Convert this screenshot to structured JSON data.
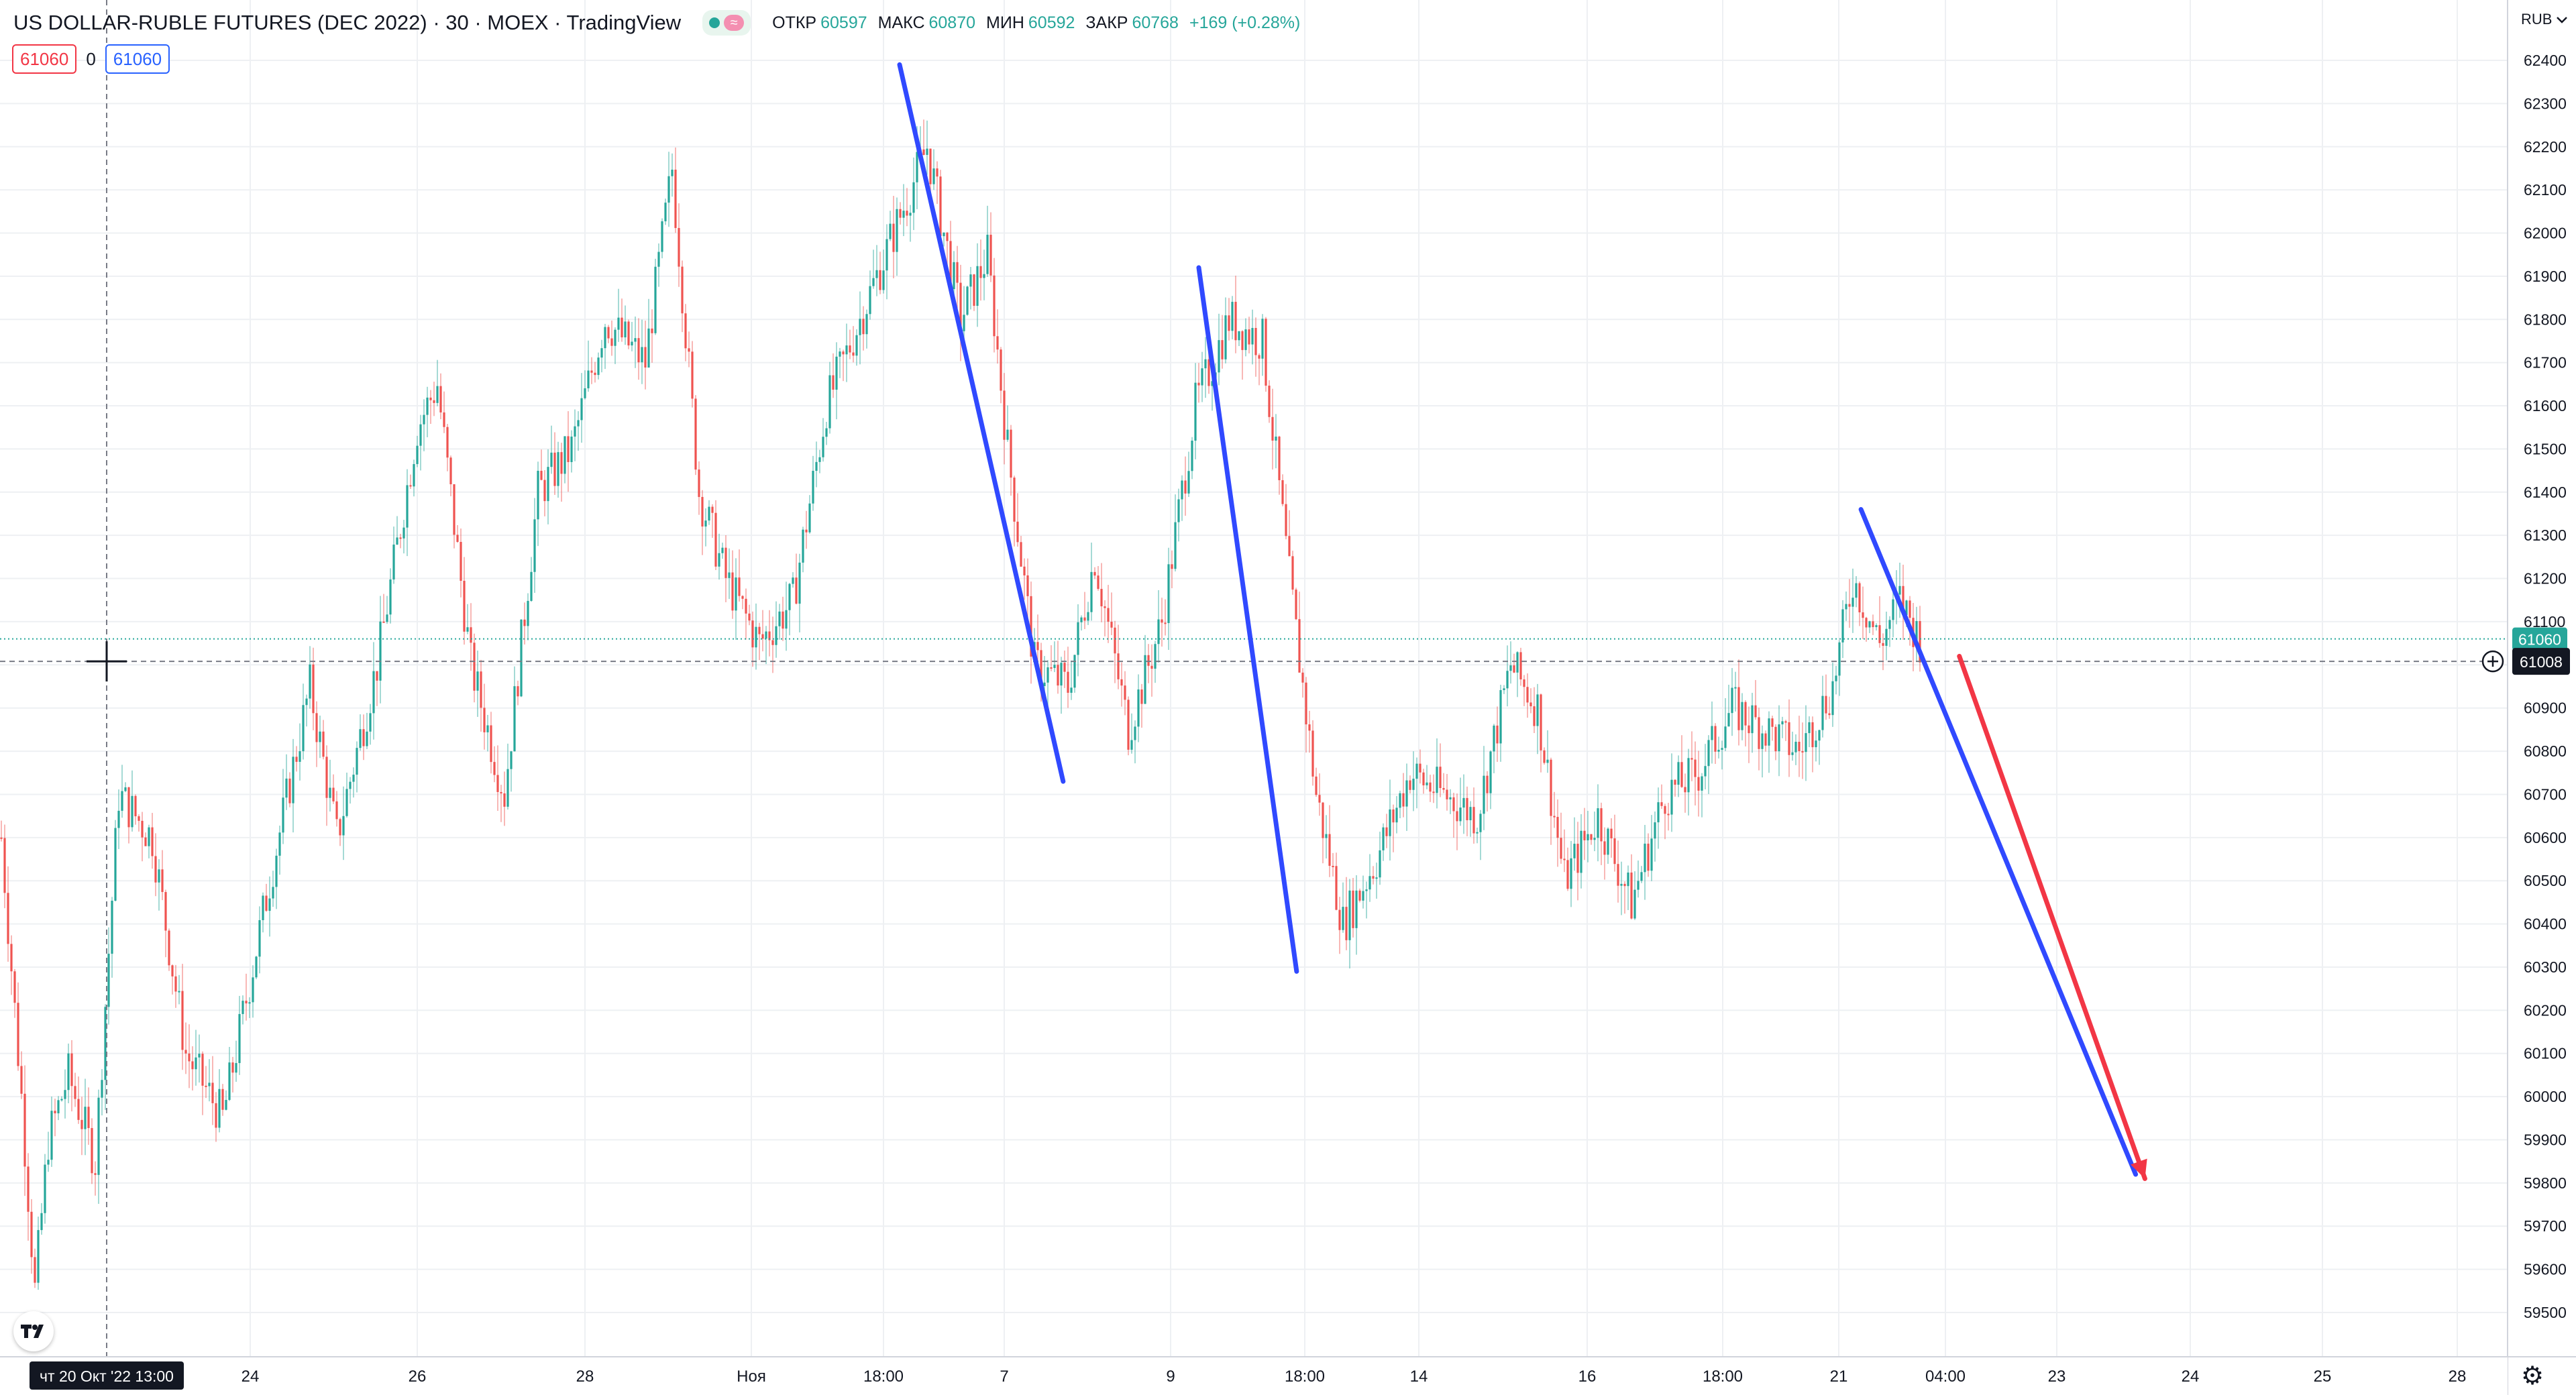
{
  "header": {
    "title": "US DOLLAR-RUBLE FUTURES (DEC 2022) · 30 · MOEX · TradingView",
    "ohlc": [
      {
        "label": "ОТКР",
        "value": "60597"
      },
      {
        "label": "МАКС",
        "value": "60870"
      },
      {
        "label": "МИН",
        "value": "60592"
      },
      {
        "label": "ЗАКР",
        "value": "60768"
      }
    ],
    "change": "+169 (+0.28%)",
    "wave_symbol": "≈"
  },
  "position": {
    "sell": "61060",
    "spread": "0",
    "buy": "61060"
  },
  "price_scale": {
    "currency": "RUB"
  },
  "crosshair": {
    "price_label": "61008",
    "time_label": "чт 20 Окт '22   13:00"
  },
  "last_price_label": "61060",
  "colors": {
    "up": "#26a69a",
    "down": "#ef5350",
    "trend": "#3049ff",
    "projection": "#f23645",
    "grid": "#eef0f3",
    "last_price_line": "#26a69a"
  },
  "icons": {
    "logo": "tradingview-logo-icon",
    "settings": "gear-icon",
    "crosshair": "crosshair-icon",
    "add": "plus-circle-icon"
  },
  "chart_data": {
    "type": "candlestick",
    "title": "US DOLLAR-RUBLE FUTURES (DEC 2022)",
    "interval": "30",
    "exchange": "MOEX",
    "ylim": [
      59400,
      62500
    ],
    "y_ticks": [
      59500,
      59600,
      59700,
      59800,
      59900,
      60000,
      60100,
      60200,
      60300,
      60400,
      60500,
      60600,
      60700,
      60800,
      60900,
      61000,
      61100,
      61200,
      61300,
      61400,
      61500,
      61600,
      61700,
      61800,
      61900,
      62000,
      62100,
      62200,
      62300,
      62400
    ],
    "x_ticks": [
      "24",
      "26",
      "28",
      "Ноя",
      "18:00",
      "7",
      "9",
      "18:00",
      "14",
      "16",
      "18:00",
      "21",
      "04:00",
      "23",
      "24",
      "25",
      "28"
    ],
    "last_price": 61060,
    "crosshair_price": 61008,
    "grid": true,
    "price_path": [
      {
        "i": 0,
        "p": 60600
      },
      {
        "i": 6,
        "p": 60000
      },
      {
        "i": 10,
        "p": 59550
      },
      {
        "i": 14,
        "p": 59900
      },
      {
        "i": 20,
        "p": 60050
      },
      {
        "i": 28,
        "p": 59850
      },
      {
        "i": 35,
        "p": 60700
      },
      {
        "i": 45,
        "p": 60600
      },
      {
        "i": 55,
        "p": 60100
      },
      {
        "i": 66,
        "p": 59950
      },
      {
        "i": 80,
        "p": 60500
      },
      {
        "i": 92,
        "p": 60950
      },
      {
        "i": 100,
        "p": 60600
      },
      {
        "i": 112,
        "p": 61000
      },
      {
        "i": 124,
        "p": 61550
      },
      {
        "i": 130,
        "p": 61650
      },
      {
        "i": 140,
        "p": 61000
      },
      {
        "i": 150,
        "p": 60700
      },
      {
        "i": 160,
        "p": 61400
      },
      {
        "i": 170,
        "p": 61500
      },
      {
        "i": 180,
        "p": 61800
      },
      {
        "i": 192,
        "p": 61700
      },
      {
        "i": 200,
        "p": 62150
      },
      {
        "i": 208,
        "p": 61400
      },
      {
        "i": 216,
        "p": 61200
      },
      {
        "i": 226,
        "p": 61050
      },
      {
        "i": 236,
        "p": 61150
      },
      {
        "i": 246,
        "p": 61600
      },
      {
        "i": 256,
        "p": 61800
      },
      {
        "i": 266,
        "p": 62000
      },
      {
        "i": 276,
        "p": 62200
      },
      {
        "i": 286,
        "p": 61800
      },
      {
        "i": 294,
        "p": 61950
      },
      {
        "i": 300,
        "p": 61500
      },
      {
        "i": 308,
        "p": 61000
      },
      {
        "i": 318,
        "p": 60950
      },
      {
        "i": 326,
        "p": 61250
      },
      {
        "i": 336,
        "p": 60850
      },
      {
        "i": 346,
        "p": 61100
      },
      {
        "i": 356,
        "p": 61600
      },
      {
        "i": 366,
        "p": 61800
      },
      {
        "i": 376,
        "p": 61750
      },
      {
        "i": 384,
        "p": 61200
      },
      {
        "i": 392,
        "p": 60700
      },
      {
        "i": 400,
        "p": 60400
      },
      {
        "i": 410,
        "p": 60550
      },
      {
        "i": 420,
        "p": 60750
      },
      {
        "i": 430,
        "p": 60700
      },
      {
        "i": 440,
        "p": 60650
      },
      {
        "i": 450,
        "p": 61000
      },
      {
        "i": 458,
        "p": 60900
      },
      {
        "i": 466,
        "p": 60500
      },
      {
        "i": 476,
        "p": 60650
      },
      {
        "i": 486,
        "p": 60450
      },
      {
        "i": 496,
        "p": 60700
      },
      {
        "i": 506,
        "p": 60750
      },
      {
        "i": 516,
        "p": 60900
      },
      {
        "i": 526,
        "p": 60850
      },
      {
        "i": 536,
        "p": 60800
      },
      {
        "i": 546,
        "p": 60950
      },
      {
        "i": 552,
        "p": 61200
      },
      {
        "i": 560,
        "p": 61050
      },
      {
        "i": 566,
        "p": 61150
      },
      {
        "i": 572,
        "p": 61060
      }
    ],
    "trendlines": [
      {
        "x1": "Ноя 2 16:00",
        "y1": 62390,
        "x2": "Ноя 7 17:00",
        "y2": 60730
      },
      {
        "x1": "Ноя 9 13:00",
        "y1": 61920,
        "x2": "Ноя 11 11:00",
        "y2": 60290
      },
      {
        "x1": "Ноя 21 05:00",
        "y1": 61360,
        "x2": "Ноя 23 17:00",
        "y2": 59820
      }
    ],
    "projection_arrow": {
      "x1": "Ноя 22 03:00",
      "y1": 61020,
      "x2": "Ноя 23 19:00",
      "y2": 59810
    }
  }
}
